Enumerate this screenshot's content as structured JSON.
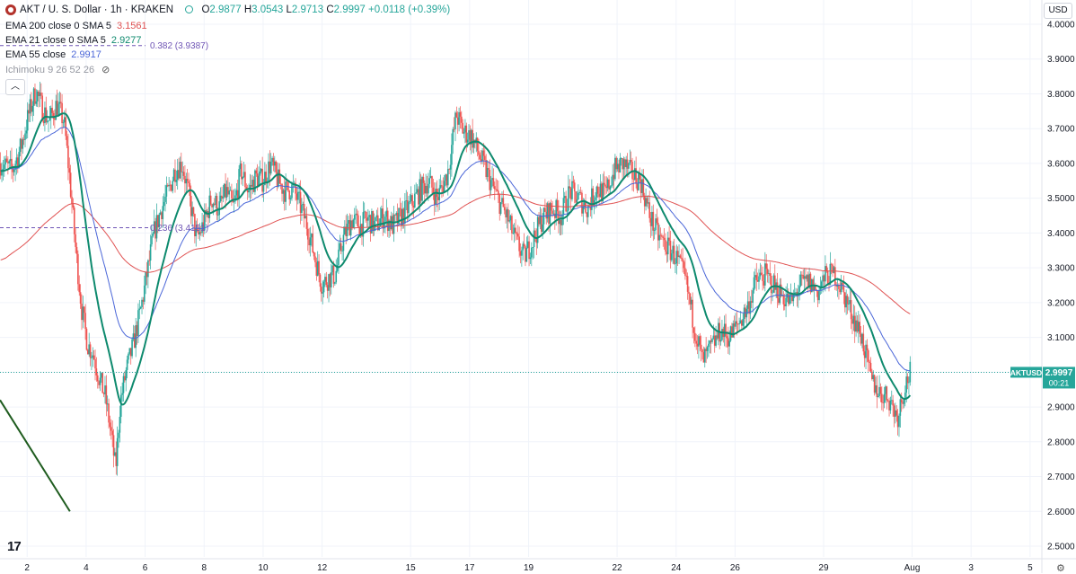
{
  "header": {
    "symbol": "AKT / U. S. Dollar · 1h · KRAKEN",
    "o_label": "O",
    "o": "2.9877",
    "h_label": "H",
    "h": "3.0543",
    "l_label": "L",
    "l": "2.9713",
    "c_label": "C",
    "c": "2.9997",
    "change": "+0.0118 (+0.39%)"
  },
  "indicators": [
    {
      "label": "EMA 200 close 0 SMA 5",
      "value": "3.1561",
      "color": "#e05252"
    },
    {
      "label": "EMA 21 close 0 SMA 5",
      "value": "2.9277",
      "color": "#0e8a6e"
    },
    {
      "label": "EMA 55 close",
      "value": "2.9917",
      "color": "#4a66d8"
    },
    {
      "label": "Ichimoku 9 26 52 26",
      "value": "",
      "color": "#9598a1"
    }
  ],
  "currency": "USD",
  "collapse_icon": "chevron-up-icon",
  "colors": {
    "up": "#26a69a",
    "down": "#ef5350",
    "ema200": "#e05252",
    "ema21": "#0e8a6e",
    "ema55": "#4a66d8",
    "fib": "#6f55b5",
    "trend": "#1f5c1f"
  },
  "chart_data": {
    "type": "candlestick",
    "symbol_tag": "AKTUSD",
    "last_price": "2.9997",
    "countdown": "00:21",
    "ylim": [
      2.5,
      4.0
    ],
    "y_ticks": [
      "2.5000",
      "2.6000",
      "2.7000",
      "2.8000",
      "2.9000",
      "3.0000",
      "3.1000",
      "3.2000",
      "3.3000",
      "3.4000",
      "3.5000",
      "3.6000",
      "3.7000",
      "3.8000",
      "3.9000",
      "4.0000"
    ],
    "x_ticks": [
      "2",
      "4",
      "6",
      "8",
      "10",
      "12",
      "15",
      "17",
      "19",
      "22",
      "24",
      "26",
      "29",
      "Aug",
      "3",
      "5"
    ],
    "x_tick_days": [
      2,
      4,
      6,
      8,
      10,
      12,
      15,
      17,
      19,
      22,
      24,
      26,
      29,
      32,
      34,
      36
    ],
    "x_range_days": [
      1.08,
      36.4
    ],
    "fib_levels": [
      {
        "label": "0.382 (3.9387)",
        "value": 3.9387
      },
      {
        "label": "0.236 (3.4151)",
        "value": 3.4151
      }
    ],
    "trendline": [
      [
        1.08,
        2.92
      ],
      [
        3.45,
        2.6
      ]
    ],
    "close_path": [
      [
        1.1,
        3.6
      ],
      [
        1.5,
        3.58
      ],
      [
        1.8,
        3.65
      ],
      [
        2.05,
        3.74
      ],
      [
        2.3,
        3.81
      ],
      [
        2.5,
        3.76
      ],
      [
        2.75,
        3.72
      ],
      [
        3.0,
        3.77
      ],
      [
        3.25,
        3.72
      ],
      [
        3.45,
        3.55
      ],
      [
        3.65,
        3.35
      ],
      [
        3.85,
        3.18
      ],
      [
        4.05,
        3.08
      ],
      [
        4.25,
        3.05
      ],
      [
        4.45,
        2.98
      ],
      [
        4.65,
        2.93
      ],
      [
        4.85,
        2.82
      ],
      [
        5.0,
        2.72
      ],
      [
        5.15,
        2.91
      ],
      [
        5.35,
        3.0
      ],
      [
        5.6,
        3.08
      ],
      [
        5.85,
        3.18
      ],
      [
        6.1,
        3.3
      ],
      [
        6.3,
        3.4
      ],
      [
        6.55,
        3.47
      ],
      [
        6.8,
        3.52
      ],
      [
        7.0,
        3.58
      ],
      [
        7.25,
        3.6
      ],
      [
        7.5,
        3.5
      ],
      [
        7.75,
        3.38
      ],
      [
        8.0,
        3.43
      ],
      [
        8.25,
        3.5
      ],
      [
        8.5,
        3.47
      ],
      [
        8.75,
        3.52
      ],
      [
        9.0,
        3.47
      ],
      [
        9.25,
        3.58
      ],
      [
        9.5,
        3.52
      ],
      [
        9.75,
        3.56
      ],
      [
        10.0,
        3.55
      ],
      [
        10.25,
        3.6
      ],
      [
        10.5,
        3.55
      ],
      [
        10.75,
        3.52
      ],
      [
        11.0,
        3.53
      ],
      [
        11.25,
        3.48
      ],
      [
        11.5,
        3.42
      ],
      [
        11.75,
        3.33
      ],
      [
        12.0,
        3.25
      ],
      [
        12.2,
        3.27
      ],
      [
        12.45,
        3.28
      ],
      [
        12.7,
        3.38
      ],
      [
        13.0,
        3.44
      ],
      [
        13.3,
        3.42
      ],
      [
        13.55,
        3.44
      ],
      [
        13.8,
        3.42
      ],
      [
        14.1,
        3.45
      ],
      [
        14.4,
        3.42
      ],
      [
        14.7,
        3.45
      ],
      [
        15.0,
        3.48
      ],
      [
        15.3,
        3.52
      ],
      [
        15.6,
        3.55
      ],
      [
        15.9,
        3.5
      ],
      [
        16.25,
        3.57
      ],
      [
        16.55,
        3.74
      ],
      [
        16.8,
        3.69
      ],
      [
        17.05,
        3.68
      ],
      [
        17.35,
        3.62
      ],
      [
        17.65,
        3.56
      ],
      [
        17.95,
        3.5
      ],
      [
        18.25,
        3.45
      ],
      [
        18.55,
        3.38
      ],
      [
        18.85,
        3.33
      ],
      [
        19.15,
        3.38
      ],
      [
        19.45,
        3.44
      ],
      [
        19.8,
        3.47
      ],
      [
        20.1,
        3.45
      ],
      [
        20.4,
        3.52
      ],
      [
        20.7,
        3.5
      ],
      [
        21.0,
        3.47
      ],
      [
        21.3,
        3.53
      ],
      [
        21.6,
        3.51
      ],
      [
        21.9,
        3.58
      ],
      [
        22.2,
        3.6
      ],
      [
        22.5,
        3.57
      ],
      [
        22.8,
        3.55
      ],
      [
        23.1,
        3.45
      ],
      [
        23.4,
        3.39
      ],
      [
        23.7,
        3.36
      ],
      [
        24.0,
        3.33
      ],
      [
        24.3,
        3.27
      ],
      [
        24.6,
        3.14
      ],
      [
        24.9,
        3.03
      ],
      [
        25.2,
        3.07
      ],
      [
        25.5,
        3.12
      ],
      [
        25.8,
        3.1
      ],
      [
        26.1,
        3.14
      ],
      [
        26.4,
        3.18
      ],
      [
        26.7,
        3.26
      ],
      [
        27.0,
        3.28
      ],
      [
        27.3,
        3.25
      ],
      [
        27.6,
        3.22
      ],
      [
        27.9,
        3.2
      ],
      [
        28.2,
        3.25
      ],
      [
        28.5,
        3.26
      ],
      [
        28.8,
        3.23
      ],
      [
        29.1,
        3.28
      ],
      [
        29.4,
        3.28
      ],
      [
        29.7,
        3.22
      ],
      [
        30.0,
        3.16
      ],
      [
        30.3,
        3.1
      ],
      [
        30.6,
        2.98
      ],
      [
        30.9,
        2.94
      ],
      [
        31.2,
        2.93
      ],
      [
        31.5,
        2.87
      ],
      [
        31.75,
        2.96
      ],
      [
        31.95,
        3.0
      ]
    ]
  }
}
